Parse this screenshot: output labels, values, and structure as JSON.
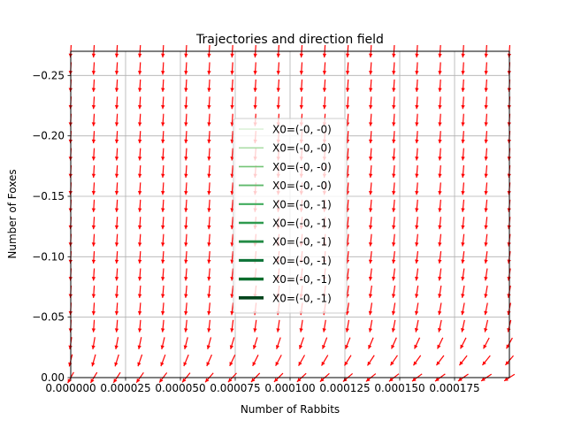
{
  "chart_data": {
    "type": "quiver",
    "title": "Trajectories and direction field",
    "xlabel": "Number of Rabbits",
    "ylabel": "Number of Foxes",
    "xlim": [
      0.0,
      0.0002
    ],
    "ylim": [
      0.0,
      -0.27
    ],
    "y_axis_inverted": true,
    "grid": true,
    "x_ticks": [
      {
        "value": 0.0,
        "label": "0.000000"
      },
      {
        "value": 2.5e-05,
        "label": "0.000025"
      },
      {
        "value": 5e-05,
        "label": "0.000050"
      },
      {
        "value": 7.5e-05,
        "label": "0.000075"
      },
      {
        "value": 0.0001,
        "label": "0.000100"
      },
      {
        "value": 0.000125,
        "label": "0.000125"
      },
      {
        "value": 0.00015,
        "label": "0.000150"
      },
      {
        "value": 0.000175,
        "label": "0.000175"
      }
    ],
    "y_ticks": [
      {
        "value": 0.0,
        "label": "0.00"
      },
      {
        "value": -0.05,
        "label": "−0.05"
      },
      {
        "value": -0.1,
        "label": "−0.10"
      },
      {
        "value": -0.15,
        "label": "−0.15"
      },
      {
        "value": -0.2,
        "label": "−0.20"
      },
      {
        "value": -0.25,
        "label": "−0.25"
      }
    ],
    "direction_field": {
      "color": "#ff0000",
      "grid_cols": 20,
      "grid_rows": 20,
      "description": "normalized arrows pointing mostly downward, tilting left near the bottom rows"
    },
    "legend": {
      "placement": "center",
      "entries": [
        {
          "label": "X0=(-0, -0)",
          "color": "#c7e9c0",
          "width": 1.0
        },
        {
          "label": "X0=(-0, -0)",
          "color": "#a1d99b",
          "width": 1.3
        },
        {
          "label": "X0=(-0, -0)",
          "color": "#74c476",
          "width": 1.6
        },
        {
          "label": "X0=(-0, -0)",
          "color": "#5fb96b",
          "width": 1.9
        },
        {
          "label": "X0=(-0, -1)",
          "color": "#41ab5d",
          "width": 2.2
        },
        {
          "label": "X0=(-0, -1)",
          "color": "#2e9a4e",
          "width": 2.5
        },
        {
          "label": "X0=(-0, -1)",
          "color": "#238b45",
          "width": 2.8
        },
        {
          "label": "X0=(-0, -1)",
          "color": "#10753a",
          "width": 3.1
        },
        {
          "label": "X0=(-0, -1)",
          "color": "#006d2c",
          "width": 3.4
        },
        {
          "label": "X0=(-0, -1)",
          "color": "#00441b",
          "width": 3.7
        }
      ]
    }
  }
}
